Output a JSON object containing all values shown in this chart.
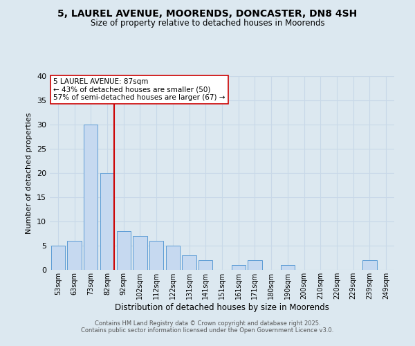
{
  "title": "5, LAUREL AVENUE, MOORENDS, DONCASTER, DN8 4SH",
  "subtitle": "Size of property relative to detached houses in Moorends",
  "xlabel": "Distribution of detached houses by size in Moorends",
  "ylabel": "Number of detached properties",
  "bar_labels": [
    "53sqm",
    "63sqm",
    "73sqm",
    "82sqm",
    "92sqm",
    "102sqm",
    "112sqm",
    "122sqm",
    "131sqm",
    "141sqm",
    "151sqm",
    "161sqm",
    "171sqm",
    "180sqm",
    "190sqm",
    "200sqm",
    "210sqm",
    "220sqm",
    "229sqm",
    "239sqm",
    "249sqm"
  ],
  "bar_values": [
    5,
    6,
    30,
    20,
    8,
    7,
    6,
    5,
    3,
    2,
    0,
    1,
    2,
    0,
    1,
    0,
    0,
    0,
    0,
    2,
    0
  ],
  "bar_color": "#c6d9f0",
  "bar_edge_color": "#5b9bd5",
  "vline_x_index": 3,
  "vline_color": "#cc0000",
  "ylim": [
    0,
    40
  ],
  "yticks": [
    0,
    5,
    10,
    15,
    20,
    25,
    30,
    35,
    40
  ],
  "annotation_title": "5 LAUREL AVENUE: 87sqm",
  "annotation_line1": "← 43% of detached houses are smaller (50)",
  "annotation_line2": "57% of semi-detached houses are larger (67) →",
  "annotation_box_color": "#ffffff",
  "annotation_box_edge": "#cc0000",
  "grid_color": "#c8d8e8",
  "bg_color": "#dce8f0",
  "footer1": "Contains HM Land Registry data © Crown copyright and database right 2025.",
  "footer2": "Contains public sector information licensed under the Open Government Licence v3.0."
}
